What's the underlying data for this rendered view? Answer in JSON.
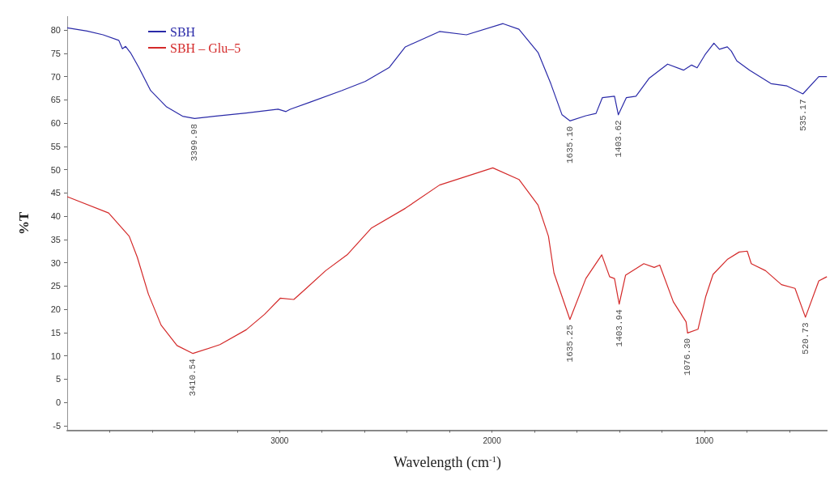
{
  "chart_data": {
    "type": "line",
    "xlabel": "Wavelength (cm$^{-1}$)",
    "ylabel": "%T",
    "legend": "top left",
    "grid": false,
    "marker": "none",
    "line_style": "solid",
    "xlim": [
      4000,
      420
    ],
    "ylim": [
      -6,
      83
    ],
    "xticks": [
      {
        "value": 3800,
        "label": null
      },
      {
        "value": 3600,
        "label": null
      },
      {
        "value": 3400,
        "label": null
      },
      {
        "value": 3200,
        "label": null
      },
      3000,
      {
        "value": 2800,
        "label": null
      },
      {
        "value": 2600,
        "label": null
      },
      {
        "value": 2400,
        "label": null
      },
      {
        "value": 2200,
        "label": null
      },
      2000,
      {
        "value": 1800,
        "label": null
      },
      {
        "value": 1600,
        "label": null
      },
      {
        "value": 1400,
        "label": null
      },
      {
        "value": 1200,
        "label": null
      },
      1000,
      {
        "value": 800,
        "label": null
      },
      {
        "value": 600,
        "label": null
      }
    ],
    "yticks": [
      -5,
      0,
      5,
      10,
      15,
      20,
      25,
      30,
      35,
      40,
      45,
      50,
      55,
      60,
      65,
      70,
      75,
      80
    ],
    "series": [
      {
        "name": "SBH",
        "color": "#2a2aa8",
        "x": [
          4000,
          3906,
          3831,
          3757,
          3740,
          3725,
          3700,
          3663,
          3607,
          3532,
          3457,
          3400,
          3307,
          3157,
          3007,
          2970,
          2950,
          2858,
          2708,
          2596,
          2483,
          2408,
          2247,
          2120,
          1948,
          1873,
          1783,
          1723,
          1670,
          1633,
          1558,
          1510,
          1480,
          1423,
          1405,
          1367,
          1322,
          1259,
          1173,
          1098,
          1060,
          1034,
          997,
          955,
          929,
          892,
          873,
          847,
          787,
          686,
          611,
          536,
          461,
          423
        ],
        "values": [
          80.5,
          79.8,
          79,
          77.8,
          76,
          76.5,
          75,
          72,
          67,
          63.5,
          61.5,
          61,
          61.5,
          62.2,
          63,
          62.5,
          63,
          64.5,
          67,
          69,
          72,
          76.4,
          79.7,
          79,
          81.4,
          80.2,
          75.2,
          68.5,
          61.8,
          60.5,
          61.6,
          62.1,
          65.5,
          65.8,
          61.8,
          65.5,
          65.8,
          69.7,
          72.7,
          71.4,
          72.5,
          71.9,
          74.7,
          77.2,
          75.9,
          76.4,
          75.5,
          73.4,
          71.4,
          68.5,
          68,
          66.3,
          70,
          70
        ]
      },
      {
        "name": "SBH – Glu–5",
        "color": "#d42a2a",
        "x": [
          4000,
          3805,
          3708,
          3670,
          3618,
          3558,
          3483,
          3408,
          3281,
          3157,
          3071,
          2996,
          2933,
          2884,
          2783,
          2682,
          2569,
          2408,
          2247,
          1996,
          1873,
          1783,
          1734,
          1708,
          1633,
          1558,
          1483,
          1446,
          1423,
          1401,
          1371,
          1285,
          1236,
          1210,
          1146,
          1086,
          1079,
          1030,
          993,
          959,
          892,
          836,
          798,
          779,
          712,
          637,
          573,
          524,
          461,
          423
        ],
        "values": [
          44.2,
          40.7,
          35.7,
          31.2,
          23.3,
          16.6,
          12.2,
          10.5,
          12.4,
          15.6,
          18.9,
          22.4,
          22.1,
          24.1,
          28.3,
          31.7,
          37.4,
          41.7,
          46.7,
          50.4,
          47.9,
          42.4,
          35.7,
          27.8,
          17.8,
          26.6,
          31.7,
          27,
          26.6,
          21.1,
          27.3,
          29.8,
          29,
          29.5,
          21.6,
          17.3,
          14.9,
          15.7,
          22.8,
          27.5,
          30.7,
          32.3,
          32.5,
          29.8,
          28.3,
          25.3,
          24.5,
          18.3,
          26.1,
          27
        ]
      }
    ],
    "annotations": [
      {
        "text": "3399.98",
        "x": 3400,
        "y": 61
      },
      {
        "text": "1635.10",
        "x": 1633,
        "y": 60.5
      },
      {
        "text": "1403.62",
        "x": 1405,
        "y": 61.8
      },
      {
        "text": "535.17",
        "x": 536,
        "y": 66.3
      },
      {
        "text": "3410.54",
        "x": 3408,
        "y": 10.5
      },
      {
        "text": "1635.25",
        "x": 1633,
        "y": 17.8
      },
      {
        "text": "1403.94",
        "x": 1401,
        "y": 21.1
      },
      {
        "text": "1076.30",
        "x": 1079,
        "y": 14.9
      },
      {
        "text": "520.73",
        "x": 524,
        "y": 18.3
      }
    ]
  }
}
